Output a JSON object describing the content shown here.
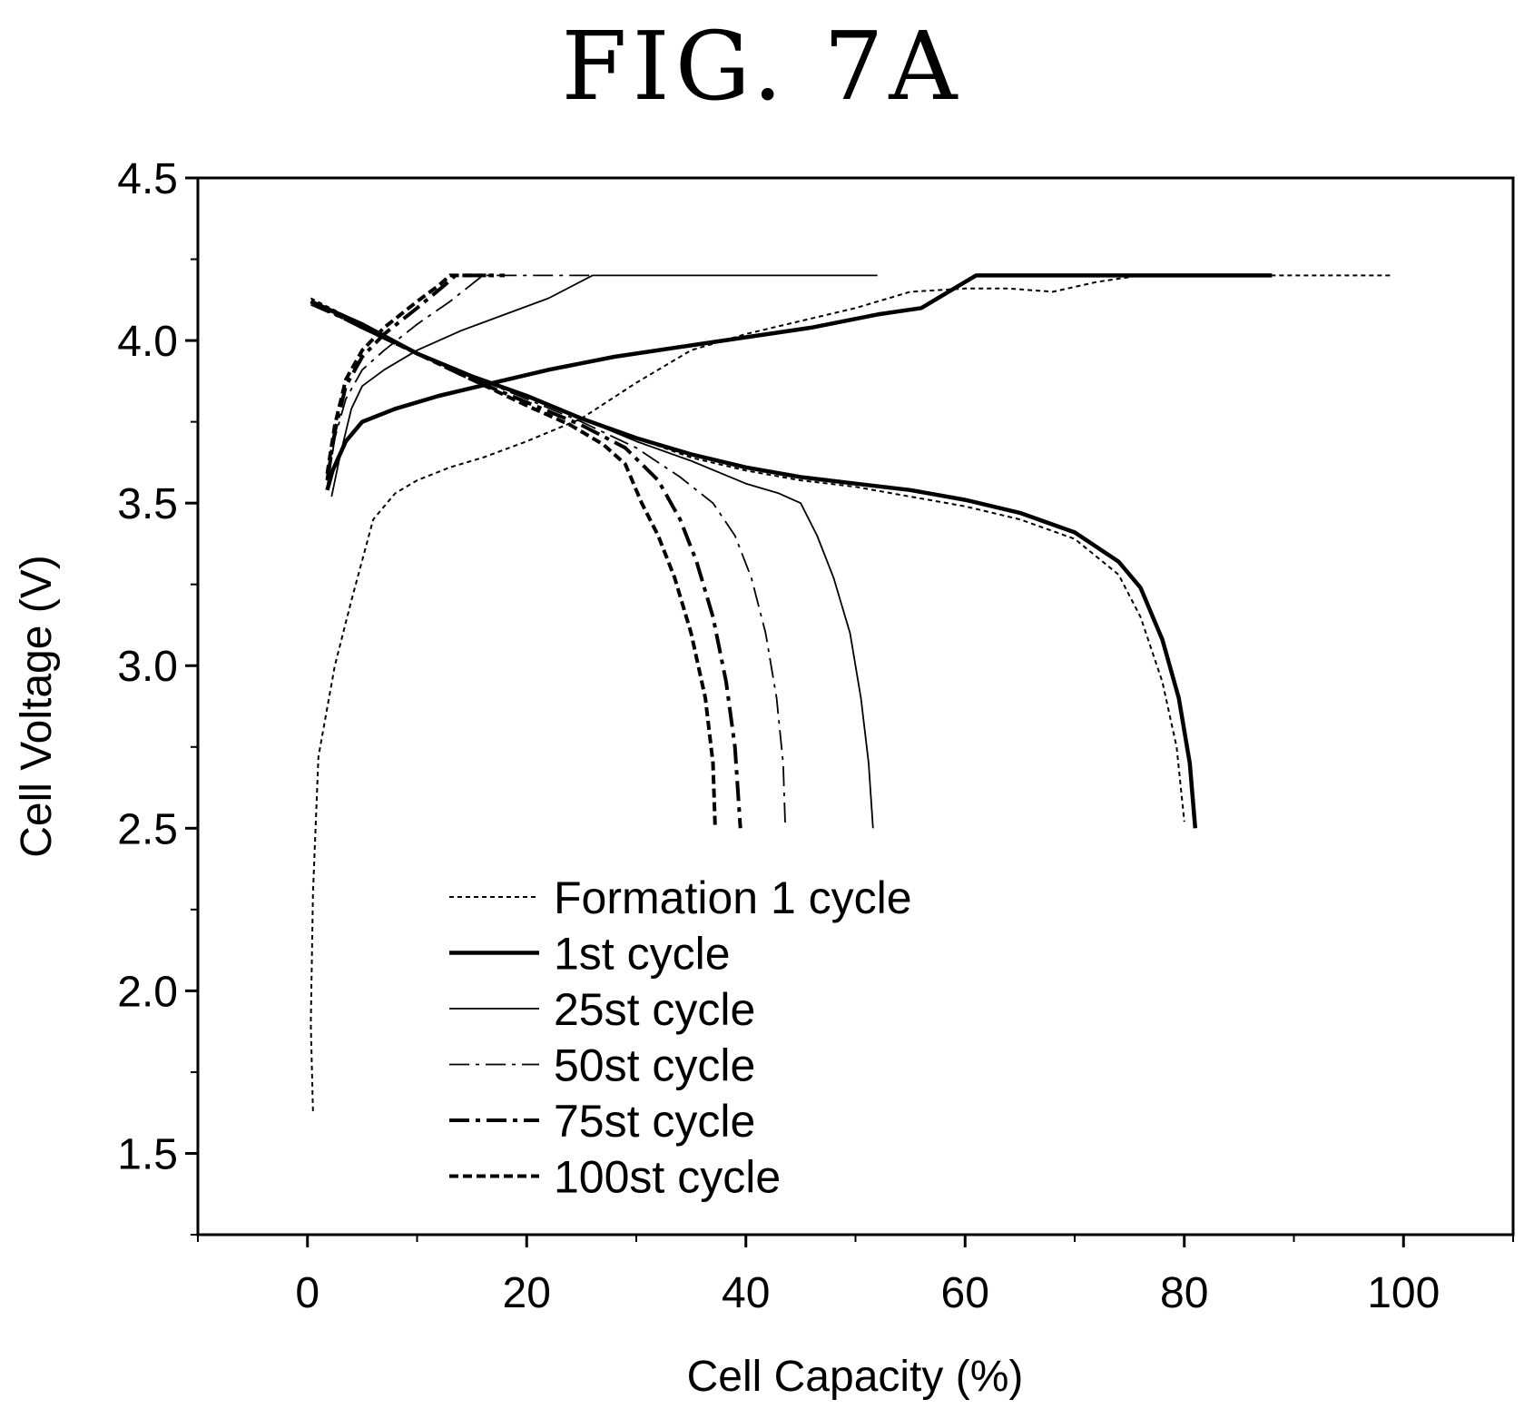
{
  "figure_title": "FIG. 7A",
  "chart_data": {
    "type": "line",
    "title": "",
    "xlabel": "Cell Capacity (%)",
    "ylabel": "Cell Voltage (V)",
    "xlim": [
      -10,
      110
    ],
    "ylim": [
      1.25,
      4.5
    ],
    "x_ticks": [
      0,
      20,
      40,
      60,
      80,
      100
    ],
    "y_ticks": [
      1.5,
      2.0,
      2.5,
      3.0,
      3.5,
      4.0,
      4.5
    ],
    "x_tick_labels": [
      "0",
      "20",
      "40",
      "60",
      "80",
      "100"
    ],
    "y_tick_labels": [
      "1.5",
      "2.0",
      "2.5",
      "3.0",
      "3.5",
      "4.0",
      "4.5"
    ],
    "grid": false,
    "legend_position": "bottom-center",
    "series": [
      {
        "name": "Formation 1 cycle",
        "style": "dotted-thin",
        "charge": [
          [
            0.5,
            1.63
          ],
          [
            0.3,
            1.9
          ],
          [
            0.5,
            2.3
          ],
          [
            1,
            2.72
          ],
          [
            2.5,
            3.0
          ],
          [
            4,
            3.2
          ],
          [
            6,
            3.45
          ],
          [
            8,
            3.53
          ],
          [
            10,
            3.57
          ],
          [
            13,
            3.61
          ],
          [
            16,
            3.64
          ],
          [
            20,
            3.69
          ],
          [
            25,
            3.76
          ],
          [
            30,
            3.87
          ],
          [
            35,
            3.97
          ],
          [
            40,
            4.02
          ],
          [
            45,
            4.06
          ],
          [
            50,
            4.1
          ],
          [
            55,
            4.15
          ],
          [
            60,
            4.16
          ],
          [
            64,
            4.16
          ],
          [
            68,
            4.15
          ],
          [
            72,
            4.18
          ],
          [
            76,
            4.2
          ],
          [
            82,
            4.2
          ],
          [
            90,
            4.2
          ],
          [
            99,
            4.2
          ]
        ],
        "discharge": [
          [
            0.3,
            4.13
          ],
          [
            5,
            4.05
          ],
          [
            10,
            3.96
          ],
          [
            15,
            3.89
          ],
          [
            20,
            3.83
          ],
          [
            25,
            3.76
          ],
          [
            30,
            3.7
          ],
          [
            35,
            3.64
          ],
          [
            40,
            3.6
          ],
          [
            45,
            3.57
          ],
          [
            50,
            3.55
          ],
          [
            55,
            3.52
          ],
          [
            60,
            3.49
          ],
          [
            65,
            3.45
          ],
          [
            70,
            3.39
          ],
          [
            74,
            3.28
          ],
          [
            76,
            3.15
          ],
          [
            78,
            2.95
          ],
          [
            79.3,
            2.75
          ],
          [
            80,
            2.52
          ]
        ]
      },
      {
        "name": "1st cycle",
        "style": "solid-thick",
        "charge": [
          [
            1.8,
            3.54
          ],
          [
            2.3,
            3.6
          ],
          [
            3.5,
            3.69
          ],
          [
            5,
            3.75
          ],
          [
            8,
            3.79
          ],
          [
            12,
            3.83
          ],
          [
            17,
            3.87
          ],
          [
            22,
            3.91
          ],
          [
            28,
            3.95
          ],
          [
            34,
            3.98
          ],
          [
            40,
            4.01
          ],
          [
            46,
            4.04
          ],
          [
            52,
            4.08
          ],
          [
            56,
            4.1
          ],
          [
            58,
            4.14
          ],
          [
            60,
            4.18
          ],
          [
            61,
            4.2
          ],
          [
            70,
            4.2
          ],
          [
            80,
            4.2
          ],
          [
            88,
            4.2
          ]
        ],
        "discharge": [
          [
            0.3,
            4.12
          ],
          [
            5,
            4.05
          ],
          [
            10,
            3.96
          ],
          [
            15,
            3.89
          ],
          [
            20,
            3.83
          ],
          [
            25,
            3.76
          ],
          [
            30,
            3.7
          ],
          [
            35,
            3.65
          ],
          [
            40,
            3.61
          ],
          [
            45,
            3.58
          ],
          [
            50,
            3.56
          ],
          [
            55,
            3.54
          ],
          [
            60,
            3.51
          ],
          [
            65,
            3.47
          ],
          [
            70,
            3.41
          ],
          [
            74,
            3.32
          ],
          [
            76,
            3.24
          ],
          [
            78,
            3.08
          ],
          [
            79.5,
            2.9
          ],
          [
            80.5,
            2.7
          ],
          [
            81,
            2.5
          ]
        ]
      },
      {
        "name": "25st cycle",
        "style": "solid-thin",
        "charge": [
          [
            2.2,
            3.52
          ],
          [
            3,
            3.65
          ],
          [
            4,
            3.79
          ],
          [
            5,
            3.86
          ],
          [
            7,
            3.91
          ],
          [
            10,
            3.97
          ],
          [
            14,
            4.03
          ],
          [
            18,
            4.08
          ],
          [
            22,
            4.13
          ],
          [
            26,
            4.2
          ],
          [
            30,
            4.2
          ],
          [
            40,
            4.2
          ],
          [
            52,
            4.2
          ]
        ],
        "discharge": [
          [
            0.3,
            4.12
          ],
          [
            5,
            4.04
          ],
          [
            10,
            3.96
          ],
          [
            15,
            3.89
          ],
          [
            20,
            3.83
          ],
          [
            25,
            3.76
          ],
          [
            30,
            3.69
          ],
          [
            35,
            3.63
          ],
          [
            40,
            3.56
          ],
          [
            43,
            3.53
          ],
          [
            45,
            3.5
          ],
          [
            46.5,
            3.4
          ],
          [
            48,
            3.27
          ],
          [
            49.5,
            3.1
          ],
          [
            50.5,
            2.9
          ],
          [
            51.2,
            2.7
          ],
          [
            51.6,
            2.5
          ]
        ]
      },
      {
        "name": "50st cycle",
        "style": "dash-dot-thin",
        "charge": [
          [
            1.8,
            3.55
          ],
          [
            2.5,
            3.7
          ],
          [
            3.5,
            3.82
          ],
          [
            5,
            3.91
          ],
          [
            7,
            3.97
          ],
          [
            10,
            4.05
          ],
          [
            13,
            4.12
          ],
          [
            16,
            4.2
          ],
          [
            20,
            4.2
          ],
          [
            26,
            4.2
          ]
        ],
        "discharge": [
          [
            0.3,
            4.11
          ],
          [
            5,
            4.04
          ],
          [
            10,
            3.96
          ],
          [
            15,
            3.89
          ],
          [
            20,
            3.82
          ],
          [
            25,
            3.75
          ],
          [
            30,
            3.67
          ],
          [
            34,
            3.58
          ],
          [
            37,
            3.5
          ],
          [
            39,
            3.4
          ],
          [
            40.5,
            3.27
          ],
          [
            41.8,
            3.1
          ],
          [
            42.8,
            2.9
          ],
          [
            43.4,
            2.7
          ],
          [
            43.6,
            2.5
          ]
        ]
      },
      {
        "name": "75st cycle",
        "style": "dash-dot-thick",
        "charge": [
          [
            1.8,
            3.57
          ],
          [
            2.5,
            3.72
          ],
          [
            3.5,
            3.86
          ],
          [
            5,
            3.95
          ],
          [
            7,
            4.02
          ],
          [
            10,
            4.1
          ],
          [
            12.5,
            4.17
          ],
          [
            13.5,
            4.2
          ],
          [
            18,
            4.2
          ]
        ],
        "discharge": [
          [
            0.3,
            4.12
          ],
          [
            5,
            4.04
          ],
          [
            10,
            3.96
          ],
          [
            15,
            3.88
          ],
          [
            20,
            3.81
          ],
          [
            25,
            3.74
          ],
          [
            29,
            3.67
          ],
          [
            32,
            3.57
          ],
          [
            34,
            3.45
          ],
          [
            35.5,
            3.32
          ],
          [
            37,
            3.15
          ],
          [
            38.2,
            2.95
          ],
          [
            39,
            2.75
          ],
          [
            39.5,
            2.5
          ]
        ]
      },
      {
        "name": "100st cycle",
        "style": "dashed-thick",
        "charge": [
          [
            1.8,
            3.59
          ],
          [
            2.5,
            3.74
          ],
          [
            3.5,
            3.88
          ],
          [
            5,
            3.97
          ],
          [
            7,
            4.04
          ],
          [
            10,
            4.12
          ],
          [
            12,
            4.17
          ],
          [
            13,
            4.2
          ],
          [
            17,
            4.2
          ]
        ],
        "discharge": [
          [
            0.3,
            4.12
          ],
          [
            5,
            4.04
          ],
          [
            10,
            3.96
          ],
          [
            15,
            3.88
          ],
          [
            20,
            3.8
          ],
          [
            24,
            3.74
          ],
          [
            27,
            3.68
          ],
          [
            29,
            3.62
          ],
          [
            30.5,
            3.5
          ],
          [
            32,
            3.4
          ],
          [
            33.5,
            3.27
          ],
          [
            35,
            3.1
          ],
          [
            36.3,
            2.9
          ],
          [
            37,
            2.7
          ],
          [
            37.2,
            2.5
          ]
        ]
      }
    ]
  }
}
